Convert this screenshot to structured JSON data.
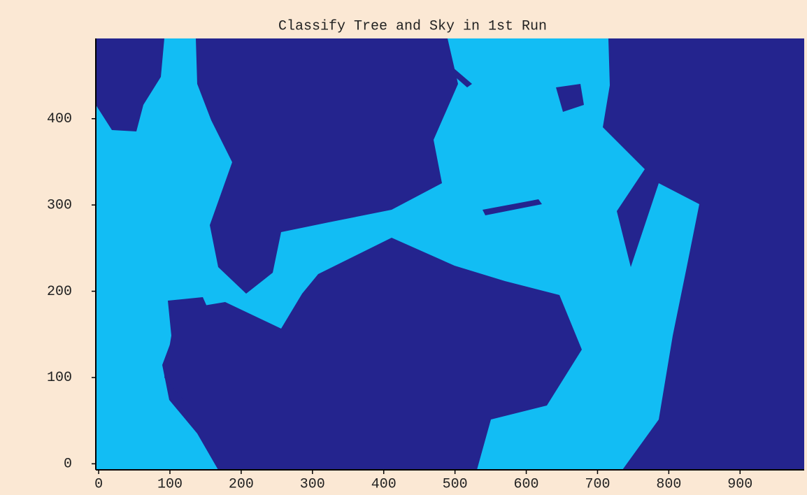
{
  "chart_data": {
    "type": "image",
    "title": "Classify Tree and Sky in 1st Run",
    "xlim": [
      -4,
      990
    ],
    "ylim": [
      -7,
      493
    ],
    "xticks": [
      0,
      100,
      200,
      300,
      400,
      500,
      600,
      700,
      800,
      900
    ],
    "yticks": [
      0,
      100,
      200,
      300,
      400
    ],
    "class_colors": [
      "#24248e",
      "#12bdf4"
    ],
    "background_color": "#fbe8d4"
  }
}
